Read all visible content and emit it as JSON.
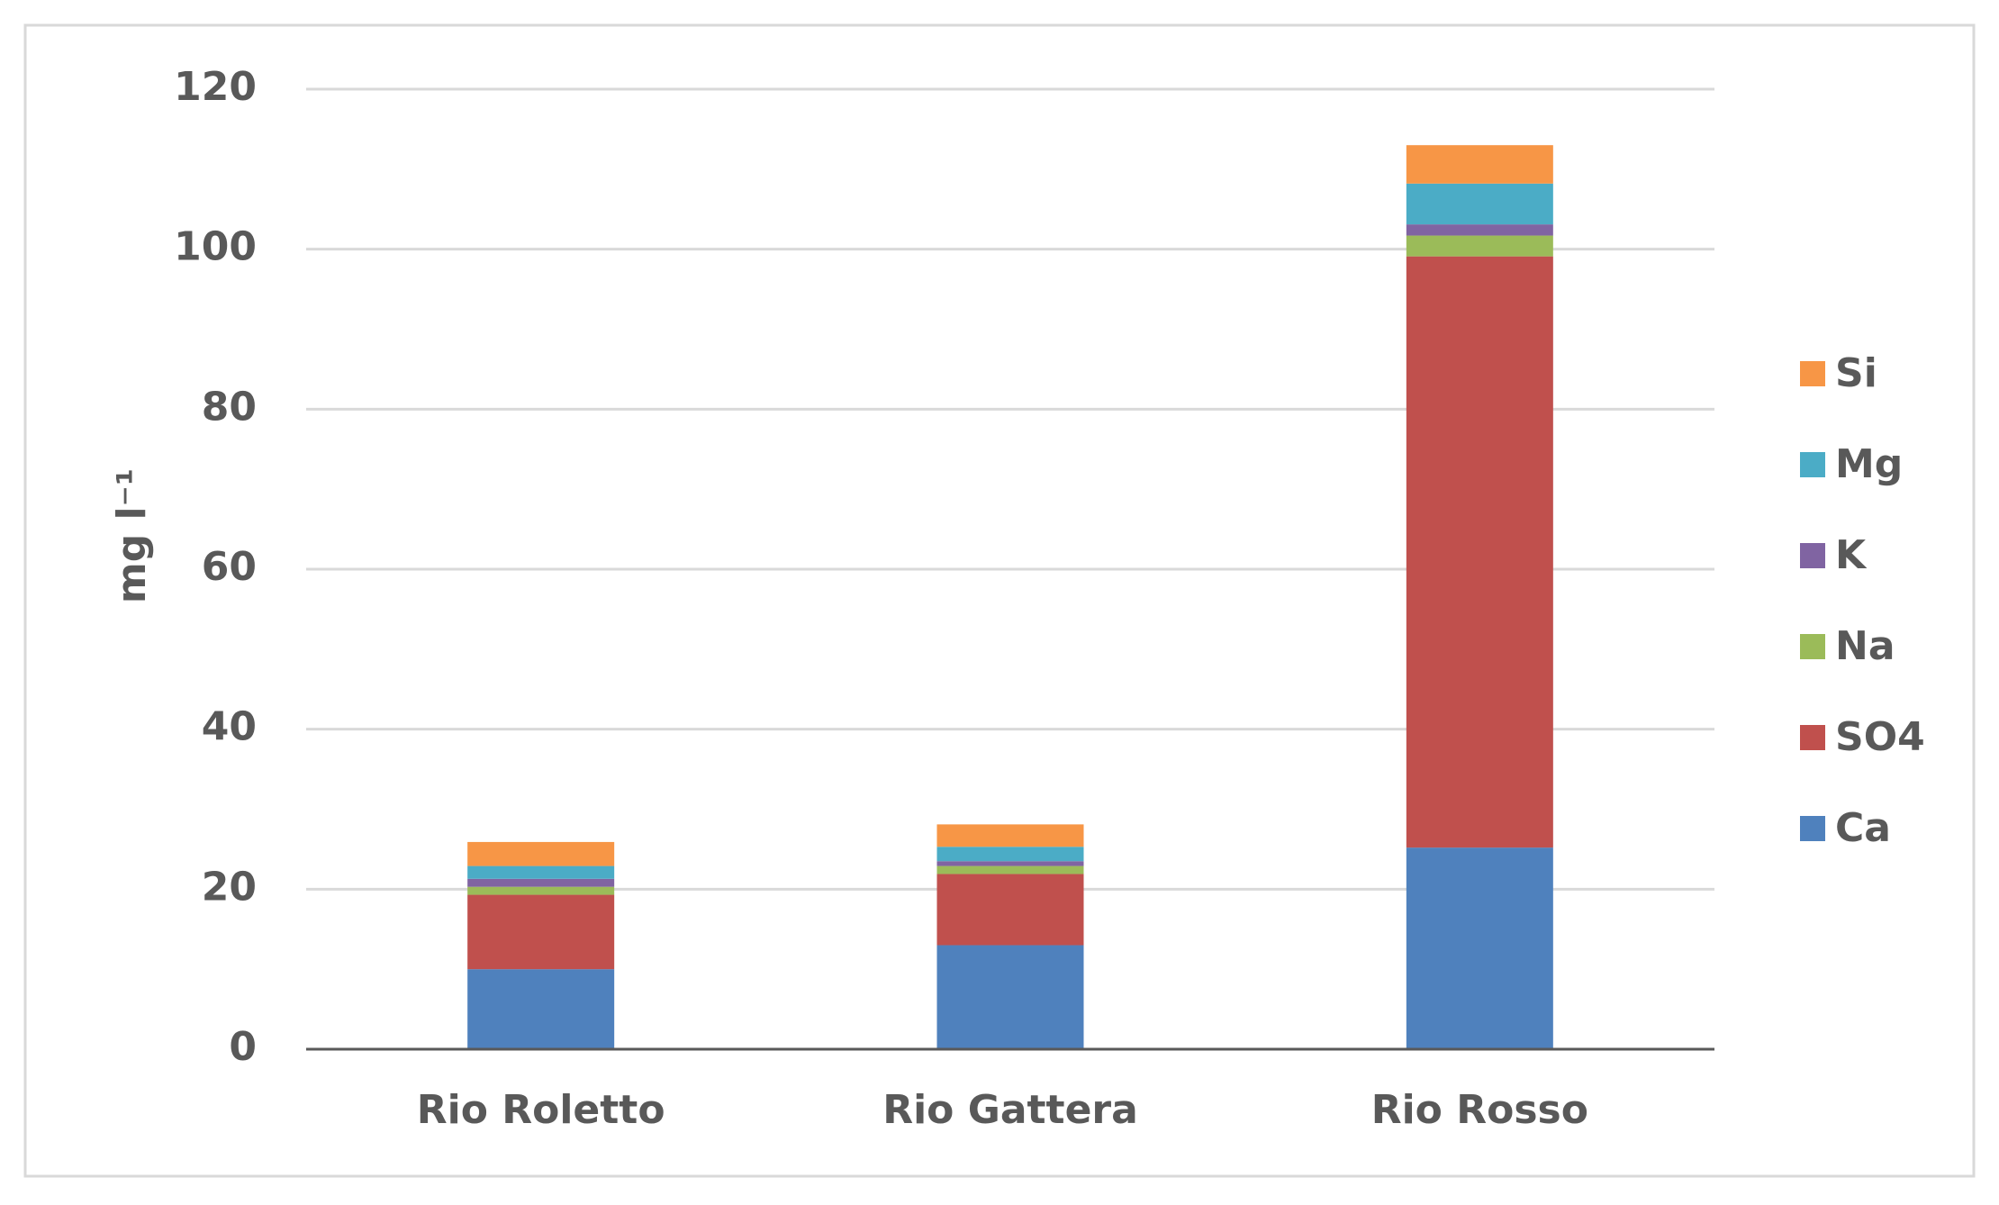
{
  "chart_data": {
    "type": "stacked_bar",
    "y_label": "mg l⁻¹",
    "categories": [
      "Rio Roletto",
      "Rio Gattera",
      "Rio Rosso"
    ],
    "series": [
      {
        "name": "Ca",
        "color": "#4f81bd",
        "values": [
          10,
          13,
          25.2
        ]
      },
      {
        "name": "SO4",
        "color": "#c0504d",
        "values": [
          9.3,
          8.9,
          73.9
        ]
      },
      {
        "name": "Na",
        "color": "#9bbb59",
        "values": [
          1,
          1,
          2.6
        ]
      },
      {
        "name": "K",
        "color": "#8064a2",
        "values": [
          1,
          0.6,
          1.4
        ]
      },
      {
        "name": "Mg",
        "color": "#4bacc6",
        "values": [
          1.6,
          1.8,
          5.1
        ]
      },
      {
        "name": "Si",
        "color": "#f79646",
        "values": [
          3,
          2.8,
          4.8
        ]
      }
    ],
    "ylim": [
      0,
      120
    ],
    "yticks": [
      0,
      20,
      40,
      60,
      80,
      100,
      120
    ],
    "grid": true,
    "legend": "right"
  }
}
